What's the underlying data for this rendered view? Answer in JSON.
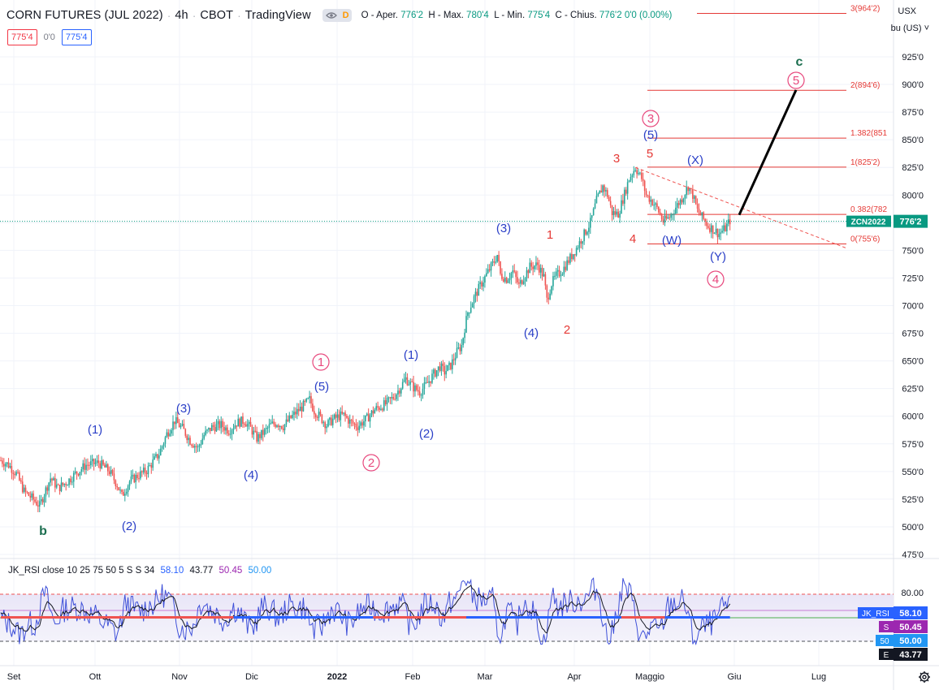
{
  "header": {
    "symbol": "CORN FUTURES (JUL 2022)",
    "interval": "4h",
    "exchange": "CBOT",
    "platform": "TradingView",
    "mode_letter": "D",
    "ohlc": {
      "o_label": "O - Aper.",
      "o_value": "776'2",
      "h_label": "H - Max.",
      "h_value": "780'4",
      "l_label": "L - Min.",
      "l_value": "775'4",
      "c_label": "C - Chius.",
      "c_value": "776'2",
      "change": "0'0 (0.00%)"
    },
    "sell_price": "775'4",
    "spread": "0'0",
    "buy_price": "775'4"
  },
  "currency": {
    "code": "USX",
    "unit": "bu (US)"
  },
  "colors": {
    "up": "#26a69a",
    "down": "#ef5350",
    "wave_blue": "#2a3fc7",
    "wave_red": "#e53935",
    "wave_pink": "#e8487d",
    "wave_green": "#1b6e4f",
    "fib": "#e53935",
    "price_line": "#089981"
  },
  "chart_data": [
    {
      "type": "candlestick",
      "x_labels": [
        "Set",
        "Ott",
        "Nov",
        "Dic",
        "2022",
        "Feb",
        "Mar",
        "Apr",
        "Maggio",
        "Giu",
        "Lug"
      ],
      "y_ticks": [
        "925'0",
        "900'0",
        "875'0",
        "850'0",
        "825'0",
        "800'0",
        "775'0",
        "750'0",
        "725'0",
        "700'0",
        "675'0",
        "650'0",
        "625'0",
        "600'0",
        "575'0",
        "550'0",
        "525'0",
        "500'0",
        "475'0"
      ],
      "ylim": [
        470,
        965
      ],
      "path": [
        [
          0,
          560
        ],
        [
          5,
          556
        ],
        [
          10,
          548
        ],
        [
          15,
          532
        ],
        [
          20,
          526
        ],
        [
          25,
          519
        ],
        [
          28,
          530
        ],
        [
          32,
          544
        ],
        [
          37,
          535
        ],
        [
          43,
          541
        ],
        [
          48,
          548
        ],
        [
          55,
          556
        ],
        [
          63,
          558
        ],
        [
          70,
          550
        ],
        [
          75,
          538
        ],
        [
          78,
          528
        ],
        [
          83,
          541
        ],
        [
          88,
          546
        ],
        [
          94,
          551
        ],
        [
          102,
          566
        ],
        [
          107,
          584
        ],
        [
          112,
          596
        ],
        [
          117,
          589
        ],
        [
          122,
          578
        ],
        [
          127,
          571
        ],
        [
          131,
          583
        ],
        [
          136,
          590
        ],
        [
          142,
          592
        ],
        [
          147,
          587
        ],
        [
          152,
          594
        ],
        [
          157,
          596
        ],
        [
          161,
          589
        ],
        [
          165,
          580
        ],
        [
          170,
          586
        ],
        [
          174,
          592
        ],
        [
          178,
          594
        ],
        [
          182,
          591
        ],
        [
          186,
          597
        ],
        [
          190,
          603
        ],
        [
          194,
          608
        ],
        [
          199,
          615
        ],
        [
          202,
          605
        ],
        [
          206,
          599
        ],
        [
          210,
          592
        ],
        [
          214,
          597
        ],
        [
          218,
          600
        ],
        [
          221,
          601
        ],
        [
          225,
          595
        ],
        [
          230,
          591
        ],
        [
          236,
          598
        ],
        [
          241,
          606
        ],
        [
          248,
          611
        ],
        [
          253,
          617
        ],
        [
          257,
          625
        ],
        [
          261,
          634
        ],
        [
          266,
          626
        ],
        [
          270,
          622
        ],
        [
          274,
          628
        ],
        [
          279,
          638
        ],
        [
          283,
          645
        ],
        [
          286,
          640
        ],
        [
          290,
          646
        ],
        [
          294,
          658
        ],
        [
          297,
          664
        ],
        [
          299,
          680
        ],
        [
          301,
          694
        ],
        [
          305,
          707
        ],
        [
          309,
          718
        ],
        [
          313,
          728
        ],
        [
          318,
          740
        ],
        [
          320,
          746
        ],
        [
          322,
          728
        ],
        [
          326,
          724
        ],
        [
          330,
          731
        ],
        [
          334,
          718
        ],
        [
          337,
          726
        ],
        [
          341,
          735
        ],
        [
          346,
          737
        ],
        [
          350,
          726
        ],
        [
          352,
          705
        ],
        [
          355,
          720
        ],
        [
          358,
          727
        ],
        [
          362,
          732
        ],
        [
          367,
          743
        ],
        [
          371,
          752
        ],
        [
          375,
          762
        ],
        [
          380,
          775
        ],
        [
          384,
          795
        ],
        [
          388,
          808
        ],
        [
          391,
          800
        ],
        [
          394,
          784
        ],
        [
          398,
          783
        ],
        [
          402,
          801
        ],
        [
          405,
          815
        ],
        [
          409,
          825
        ],
        [
          413,
          815
        ],
        [
          416,
          800
        ],
        [
          420,
          794
        ],
        [
          423,
          788
        ],
        [
          427,
          776
        ],
        [
          431,
          780
        ],
        [
          435,
          789
        ],
        [
          439,
          797
        ],
        [
          443,
          808
        ],
        [
          446,
          800
        ],
        [
          449,
          786
        ],
        [
          452,
          780
        ],
        [
          456,
          772
        ],
        [
          460,
          768
        ],
        [
          463,
          765
        ],
        [
          467,
          770
        ],
        [
          470,
          777
        ]
      ],
      "elliott_labels": [
        "b",
        "(1)",
        "(2)",
        "(3)",
        "(4)",
        "(5)",
        "1",
        "2",
        "(1)",
        "(2)",
        "(3)",
        "(4)",
        "(5)",
        "1",
        "2",
        "3",
        "4",
        "5",
        "3",
        "(X)",
        "(W)",
        "(Y)",
        "4",
        "5",
        "c"
      ],
      "fib_levels": [
        {
          "label": "3(964'2)",
          "value": 964.25
        },
        {
          "label": "2(894'6)",
          "value": 894.75
        },
        {
          "label": "1.382(851",
          "value": 851.5
        },
        {
          "label": "1(825'2)",
          "value": 825.25
        },
        {
          "label": "0.382(782",
          "value": 782.5
        },
        {
          "label": "0(755'6)",
          "value": 755.75
        }
      ],
      "projection": {
        "from": 782,
        "to": 895
      },
      "current_price_label": "ZCN2022",
      "current_price": "776'2",
      "current_value": 776.25
    },
    {
      "type": "line",
      "title": "JK_RSI close 10 25 75 50 5 S S 34",
      "legend_values": [
        "58.10",
        "43.77",
        "50.45",
        "50.00"
      ],
      "y_tick": "80.00",
      "ylim": [
        5,
        95
      ],
      "levels": {
        "upper": 75,
        "lower": 25,
        "mid": 50
      },
      "tags": [
        {
          "name": "JK_RSI",
          "value": "58.10"
        },
        {
          "name": "S",
          "value": "50.45"
        },
        {
          "name": "50",
          "value": "50.00"
        },
        {
          "name": "E",
          "value": "43.77"
        }
      ]
    }
  ]
}
